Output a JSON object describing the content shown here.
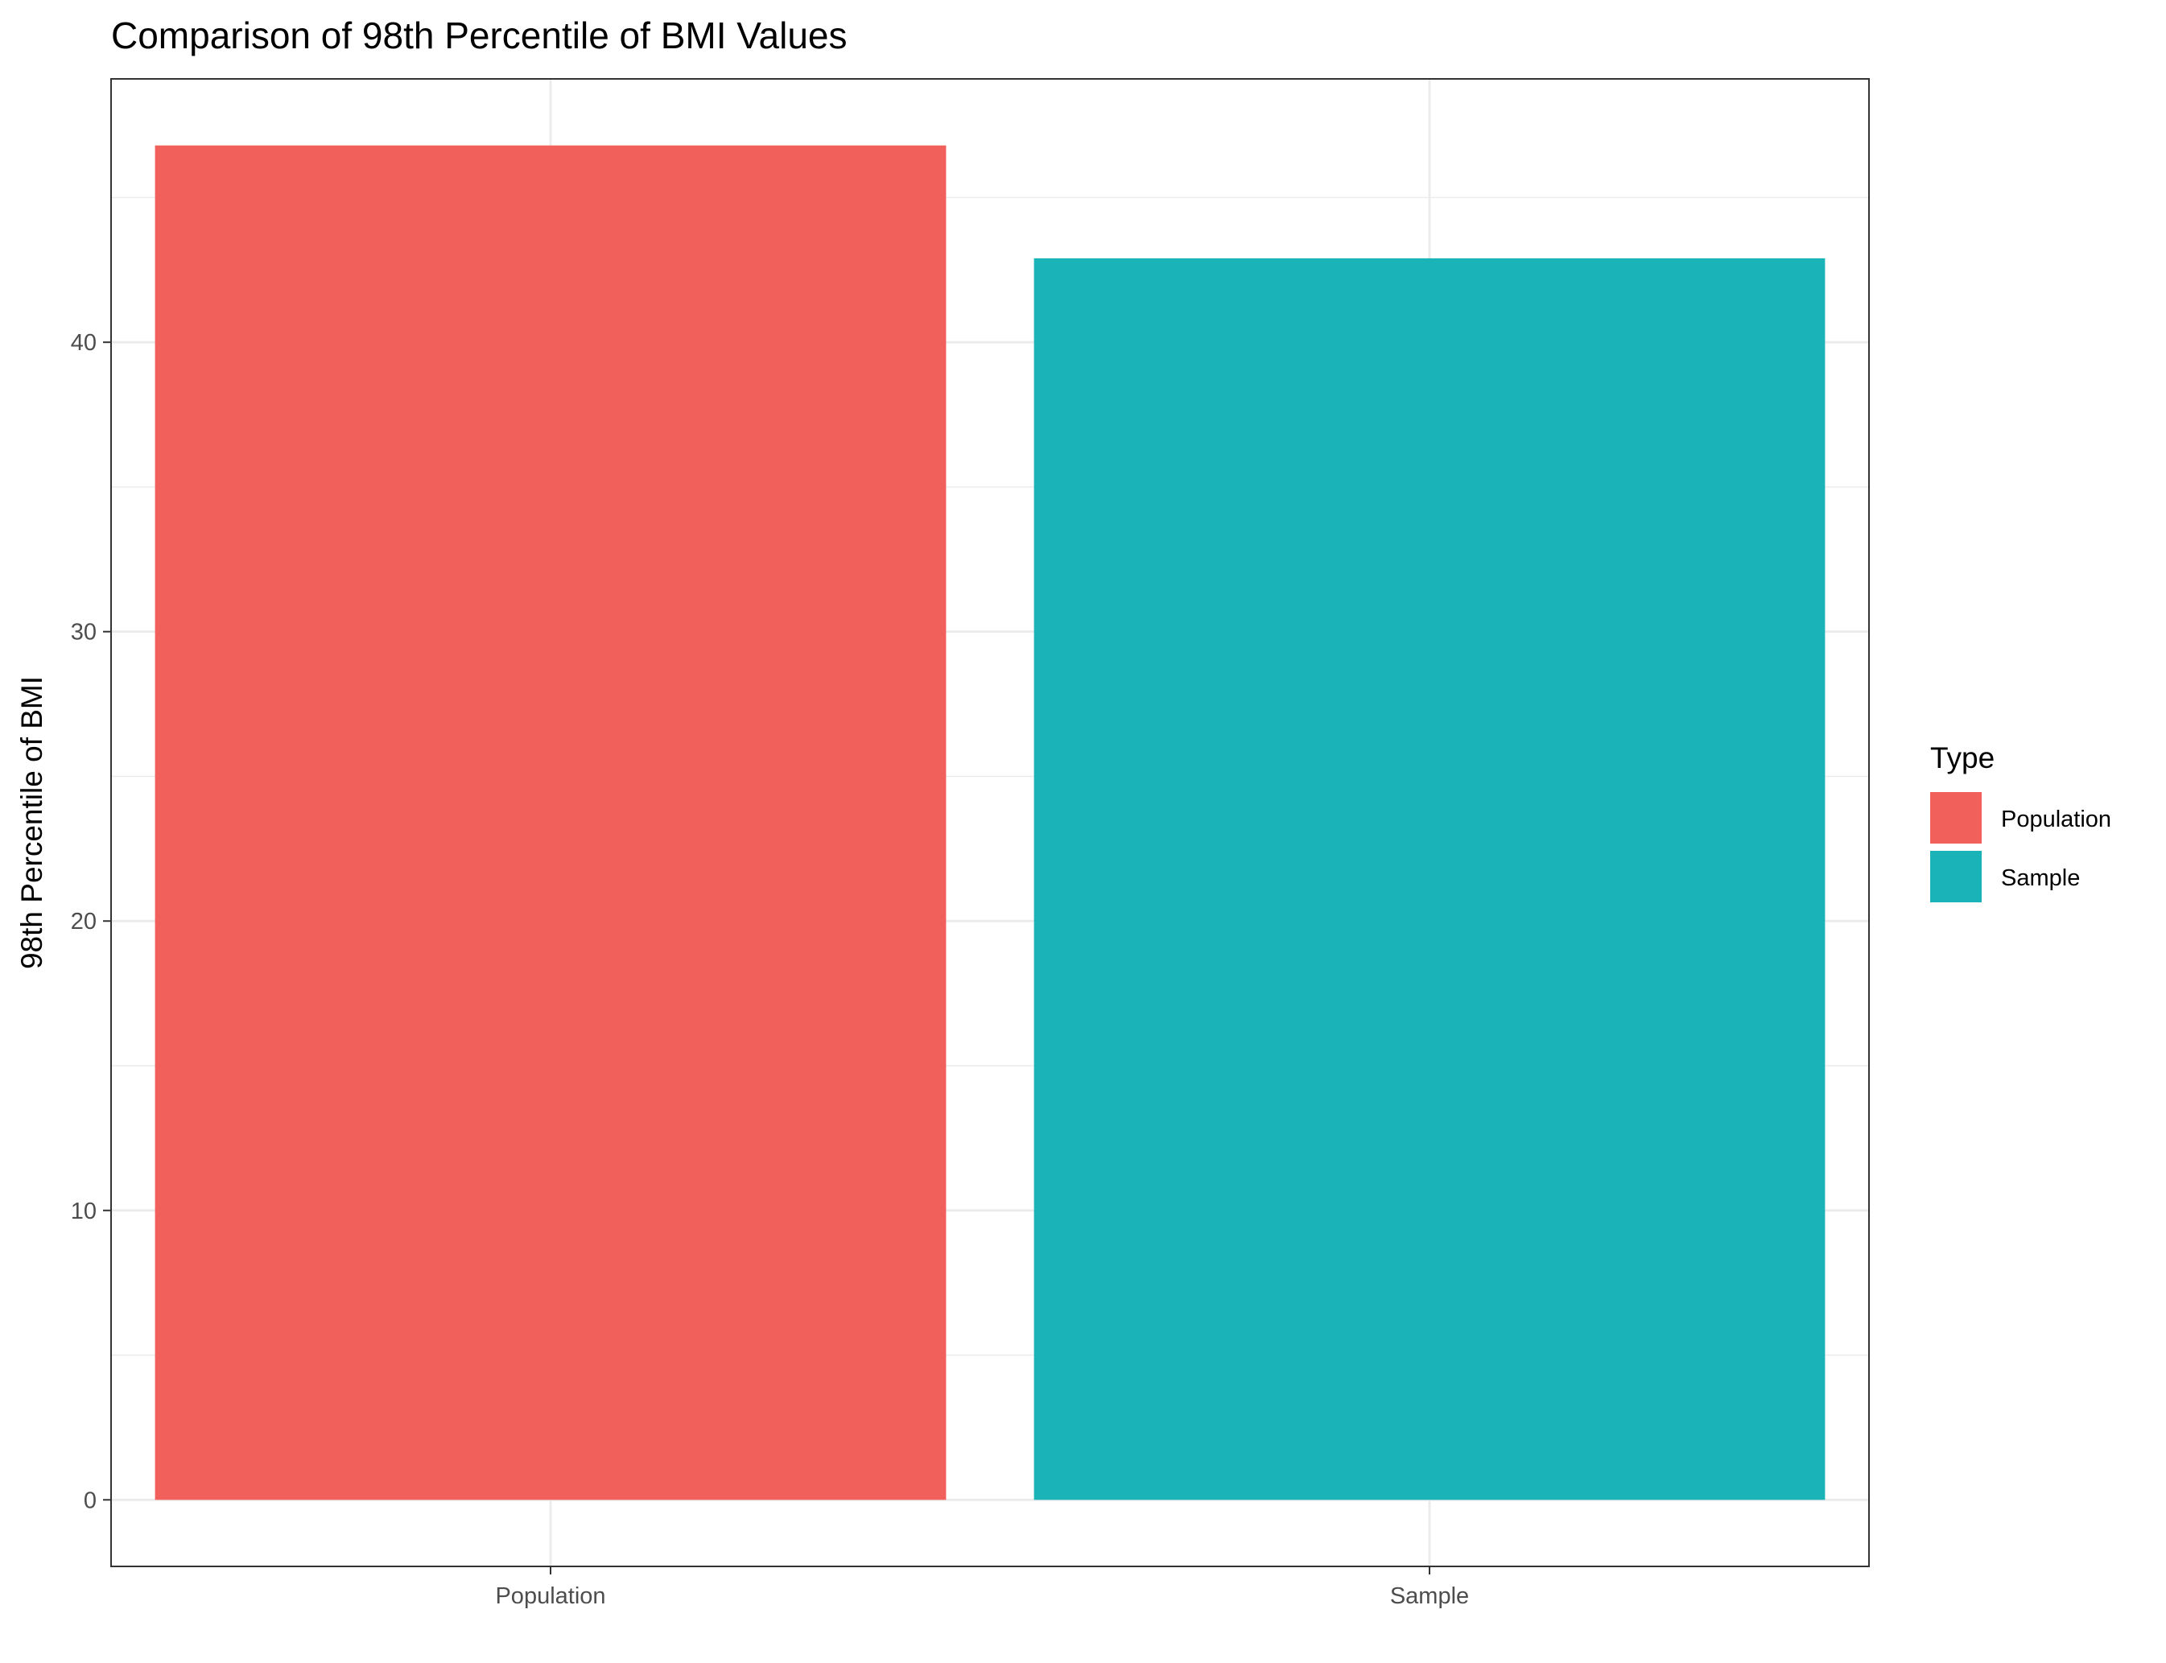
{
  "chart_data": {
    "type": "bar",
    "title": "Comparison of 98th Percentile of BMI Values",
    "xlabel": "",
    "ylabel": "98th Percentile of BMI",
    "categories": [
      "Population",
      "Sample"
    ],
    "values": [
      46.8,
      42.9
    ],
    "colors": [
      "#F2605C",
      "#19B3B8"
    ],
    "ylim": [
      -2.3,
      49.1
    ],
    "y_ticks": [
      0,
      10,
      20,
      30,
      40
    ],
    "y_ticks_labels": [
      "0",
      "10",
      "20",
      "30",
      "40"
    ],
    "grid": true,
    "legend": {
      "title": "Type",
      "placement": "right",
      "entries": [
        "Population",
        "Sample"
      ]
    }
  }
}
